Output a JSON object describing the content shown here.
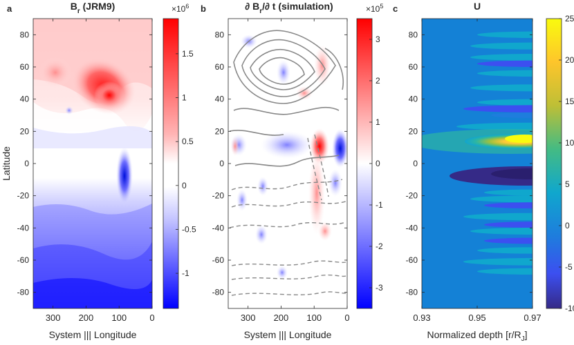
{
  "chart_data": [
    {
      "panel": "a",
      "type": "heatmap",
      "title": "B",
      "title_sub": "r",
      "title_suffix": " (JRM9)",
      "xlabel": "System ||| Longitude",
      "ylabel": "Latitude",
      "xlim": [
        360,
        0
      ],
      "ylim": [
        -90,
        90
      ],
      "xticks": [
        300,
        200,
        100,
        0
      ],
      "yticks": [
        80,
        60,
        40,
        20,
        0,
        -20,
        -40,
        -60,
        -80
      ],
      "colorbar": {
        "range": [
          -1.4,
          1.9
        ],
        "ticks": [
          1.5,
          1,
          0.5,
          0,
          -0.5,
          -1
        ],
        "exponent": "×10",
        "exponent_power": "6",
        "colormap": "blue-white-red"
      },
      "features": [
        {
          "label": "northern positive patch",
          "lon": 145,
          "lat": 42,
          "value": 1.9
        },
        {
          "label": "equatorial negative spot",
          "lon": 85,
          "lat": -5,
          "value": -1.2
        },
        {
          "label": "southern negative band",
          "lon": 180,
          "lat": -85,
          "value": -1.3
        }
      ]
    },
    {
      "panel": "b",
      "type": "heatmap",
      "title_prefix": "∂ B",
      "title_sub": "r",
      "title_suffix": "/∂ t (simulation)",
      "xlabel": "System ||| Longitude",
      "xlim": [
        360,
        0
      ],
      "ylim": [
        -90,
        90
      ],
      "xticks": [
        300,
        200,
        100,
        0
      ],
      "yticks": [
        80,
        60,
        40,
        20,
        0,
        -20,
        -40,
        -60,
        -80
      ],
      "colorbar": {
        "range": [
          -3.5,
          3.5
        ],
        "ticks": [
          3,
          2,
          1,
          0,
          -1,
          -2,
          -3
        ],
        "exponent": "×10",
        "exponent_power": "5",
        "colormap": "blue-white-red"
      },
      "overlay": "contours of U (solid positive, dashed negative)",
      "features": [
        {
          "label": "strong positive patch",
          "lon": 70,
          "lat": 10,
          "value": 3.3
        },
        {
          "label": "negative patch",
          "lon": 185,
          "lat": 8,
          "value": -1.9
        }
      ]
    },
    {
      "panel": "c",
      "type": "heatmap",
      "title": "U",
      "xlabel": "Normalized depth [r/R",
      "xlabel_sub": "J",
      "xlabel_suffix": "]",
      "xlim": [
        0.93,
        0.97
      ],
      "ylim": [
        -90,
        90
      ],
      "xticks": [
        0.93,
        0.95,
        0.97
      ],
      "xtick_labels": [
        "0.93",
        "0.95",
        "0.97"
      ],
      "yticks": [
        80,
        60,
        40,
        20,
        0,
        -20,
        -40,
        -60,
        -80
      ],
      "colorbar": {
        "range": [
          -10,
          25
        ],
        "ticks": [
          25,
          20,
          15,
          10,
          5,
          0,
          -5,
          -10
        ],
        "colormap": "parula"
      },
      "jets": [
        {
          "lat": 80,
          "value": 4
        },
        {
          "lat": 73,
          "value": 5
        },
        {
          "lat": 66,
          "value": 5
        },
        {
          "lat": 62,
          "value": -4
        },
        {
          "lat": 56,
          "value": 4
        },
        {
          "lat": 47,
          "value": 5
        },
        {
          "lat": 38,
          "value": 4
        },
        {
          "lat": 34,
          "value": -6
        },
        {
          "lat": 30,
          "value": 2
        },
        {
          "lat": 23,
          "value": 7
        },
        {
          "lat": 15,
          "value": 25
        },
        {
          "lat": -4,
          "value": -9
        },
        {
          "lat": -9,
          "value": -5
        },
        {
          "lat": -18,
          "value": 3
        },
        {
          "lat": -22,
          "value": 5
        },
        {
          "lat": -26,
          "value": -3
        },
        {
          "lat": -33,
          "value": 6
        },
        {
          "lat": -38,
          "value": -3
        },
        {
          "lat": -42,
          "value": 5
        },
        {
          "lat": -48,
          "value": -3
        },
        {
          "lat": -54,
          "value": 4
        },
        {
          "lat": -61,
          "value": 6
        },
        {
          "lat": -67,
          "value": 4
        }
      ]
    }
  ]
}
